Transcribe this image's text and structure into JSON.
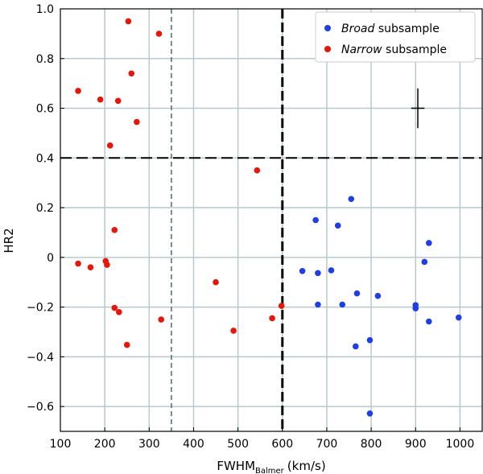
{
  "chart_data": {
    "type": "scatter",
    "xlabel_main": "FWHM",
    "xlabel_sub": "Balmer",
    "xlabel_unit": "(km/s)",
    "ylabel": "HR2",
    "xlim": [
      100,
      1050
    ],
    "ylim": [
      -0.7,
      1.0
    ],
    "xticks": [
      100,
      200,
      300,
      400,
      500,
      600,
      700,
      800,
      900,
      1000
    ],
    "yticks": [
      1.0,
      0.8,
      0.6,
      0.4,
      0.2,
      0,
      -0.2,
      -0.4,
      -0.6
    ],
    "ytick_labels": [
      "1.0",
      "0.8",
      "0.6",
      "0.4",
      "0.2",
      "0",
      "−0.2",
      "−0.4",
      "−0.6"
    ],
    "grid": true,
    "legend_position": "top-right",
    "reference_lines": {
      "vertical_dashed_bold_x": 600,
      "vertical_dashed_thin_x": 350,
      "horizontal_dashed_bold_y": 0.4
    },
    "error_bar_example": {
      "x": 905,
      "y": 0.6,
      "xerr": 15,
      "yerr": 0.08
    },
    "series": [
      {
        "name_italic": "Broad",
        "name_rest": " subsample",
        "color": "#1f3fe0",
        "points": [
          [
            755,
            0.235
          ],
          [
            675,
            0.15
          ],
          [
            725,
            0.128
          ],
          [
            930,
            0.058
          ],
          [
            920,
            -0.018
          ],
          [
            645,
            -0.055
          ],
          [
            710,
            -0.052
          ],
          [
            680,
            -0.063
          ],
          [
            768,
            -0.145
          ],
          [
            815,
            -0.155
          ],
          [
            680,
            -0.19
          ],
          [
            735,
            -0.19
          ],
          [
            900,
            -0.192
          ],
          [
            900,
            -0.205
          ],
          [
            997,
            -0.242
          ],
          [
            930,
            -0.258
          ],
          [
            797,
            -0.333
          ],
          [
            765,
            -0.358
          ],
          [
            797,
            -0.628
          ]
        ]
      },
      {
        "name_italic": "Narrow",
        "name_rest": " subsample",
        "color": "#e3170a",
        "points": [
          [
            253,
            0.95
          ],
          [
            322,
            0.9
          ],
          [
            260,
            0.74
          ],
          [
            140,
            0.67
          ],
          [
            190,
            0.635
          ],
          [
            230,
            0.63
          ],
          [
            272,
            0.545
          ],
          [
            212,
            0.45
          ],
          [
            543,
            0.35
          ],
          [
            222,
            0.11
          ],
          [
            140,
            -0.025
          ],
          [
            168,
            -0.04
          ],
          [
            202,
            -0.015
          ],
          [
            205,
            -0.03
          ],
          [
            450,
            -0.1
          ],
          [
            598,
            -0.195
          ],
          [
            222,
            -0.203
          ],
          [
            232,
            -0.22
          ],
          [
            327,
            -0.25
          ],
          [
            577,
            -0.245
          ],
          [
            490,
            -0.295
          ],
          [
            250,
            -0.352
          ]
        ]
      }
    ]
  }
}
